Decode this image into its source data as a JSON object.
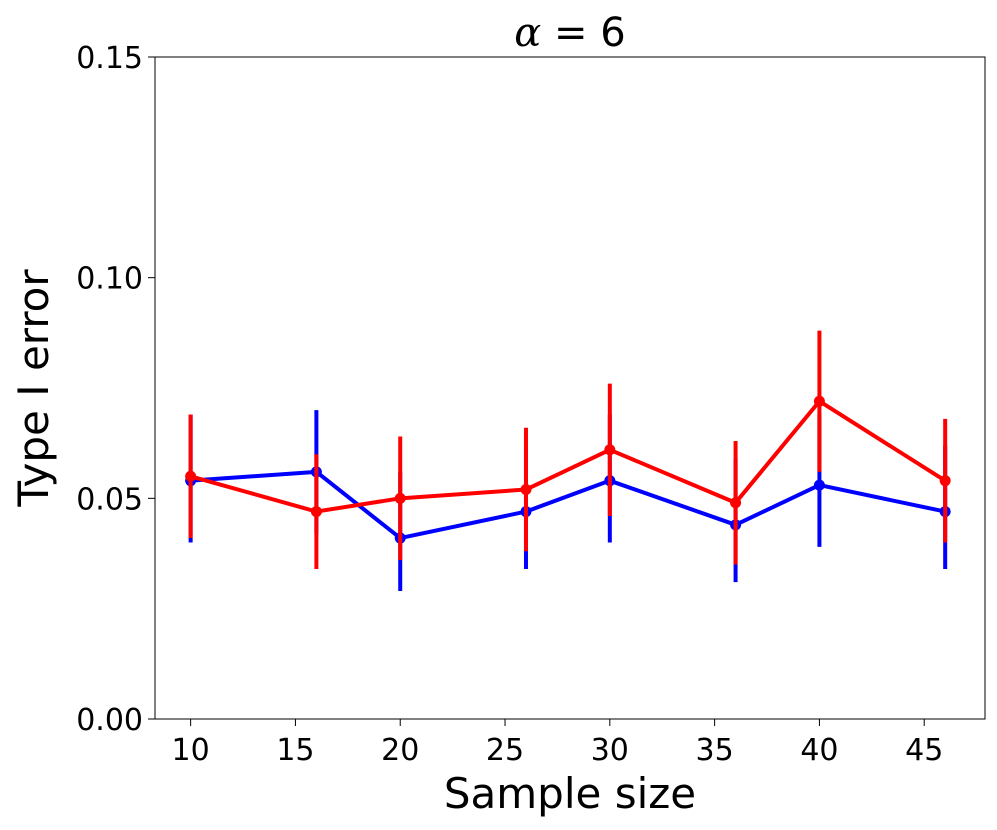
{
  "chart_data": {
    "type": "line",
    "title_symbol": "α",
    "title_rest": " = 6",
    "xlabel": "Sample size",
    "ylabel": "Type I error",
    "xlim": [
      8.3,
      47.9
    ],
    "ylim": [
      0.0,
      0.15
    ],
    "xticks": [
      10,
      15,
      20,
      25,
      30,
      35,
      40,
      45
    ],
    "yticks": [
      0.0,
      0.05,
      0.1,
      0.15
    ],
    "ytick_labels": [
      "0.00",
      "0.05",
      "0.10",
      "0.15"
    ],
    "grid": false,
    "x": [
      10,
      16,
      20,
      26,
      30,
      36,
      40,
      46
    ],
    "series": [
      {
        "name": "blue",
        "color": "#0000ff",
        "values": [
          0.054,
          0.056,
          0.041,
          0.047,
          0.054,
          0.044,
          0.053,
          0.047
        ],
        "err_low": [
          0.04,
          0.042,
          0.029,
          0.034,
          0.04,
          0.031,
          0.039,
          0.034
        ],
        "err_high": [
          0.069,
          0.07,
          0.056,
          0.062,
          0.069,
          0.059,
          0.069,
          0.062
        ]
      },
      {
        "name": "red",
        "color": "#ff0000",
        "values": [
          0.055,
          0.047,
          0.05,
          0.052,
          0.061,
          0.049,
          0.072,
          0.054
        ],
        "err_low": [
          0.041,
          0.034,
          0.036,
          0.038,
          0.046,
          0.035,
          0.056,
          0.04
        ],
        "err_high": [
          0.069,
          0.06,
          0.064,
          0.066,
          0.076,
          0.063,
          0.088,
          0.068
        ]
      }
    ]
  }
}
